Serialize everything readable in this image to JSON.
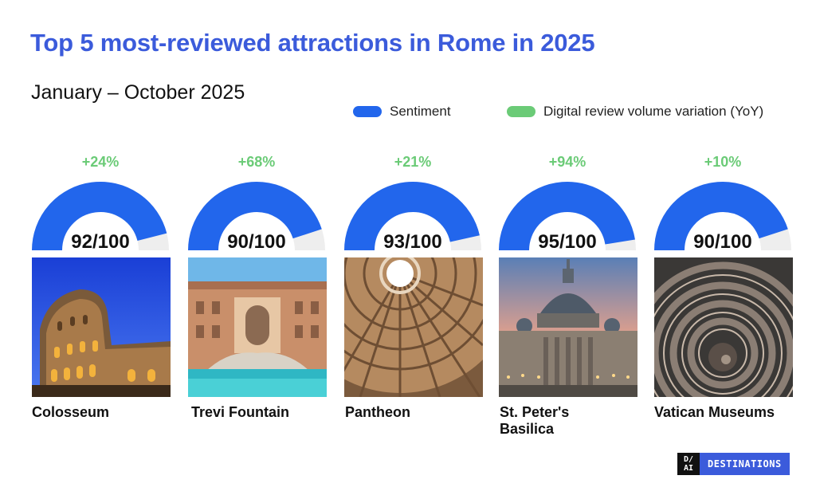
{
  "title": "Top 5 most-reviewed attractions in Rome in 2025",
  "subtitle": "January – October 2025",
  "legend": {
    "sentiment": "Sentiment",
    "volume": "Digital review volume variation (YoY)"
  },
  "colors": {
    "sentiment": "#2266ec",
    "volume": "#6bcb77",
    "track": "#eeeeee",
    "title": "#3b5bdb"
  },
  "chart_data": {
    "type": "gauge",
    "title": "Top 5 most-reviewed attractions in Rome in 2025",
    "subtitle": "January – October 2025",
    "scale_max": 100,
    "series": [
      {
        "name": "Sentiment",
        "values": [
          92,
          90,
          93,
          95,
          90
        ]
      },
      {
        "name": "Digital review volume variation (YoY)",
        "values": [
          24,
          68,
          21,
          94,
          10
        ]
      }
    ],
    "categories": [
      "Colosseum",
      "Trevi Fountain",
      "Pantheon",
      "St. Peter's Basilica",
      "Vatican Museums"
    ],
    "sentiment_labels": [
      "92/100",
      "90/100",
      "93/100",
      "95/100",
      "90/100"
    ],
    "volume_labels": [
      "+24%",
      "+68%",
      "+21%",
      "+94%",
      "+10%"
    ]
  },
  "attractions": [
    {
      "name_lines": [
        "Colosseum"
      ],
      "photo": "colosseum"
    },
    {
      "name_lines": [
        "Trevi Fountain"
      ],
      "photo": "trevi-fountain"
    },
    {
      "name_lines": [
        "Pantheon"
      ],
      "photo": "pantheon"
    },
    {
      "name_lines": [
        "St. Peter's",
        "Basilica"
      ],
      "photo": "st-peters-basilica"
    },
    {
      "name_lines": [
        "Vatican Museums"
      ],
      "photo": "vatican-museums"
    }
  ],
  "brand": {
    "mark_top": "D/",
    "mark_bottom": "AI",
    "text": "DESTINATIONS"
  }
}
